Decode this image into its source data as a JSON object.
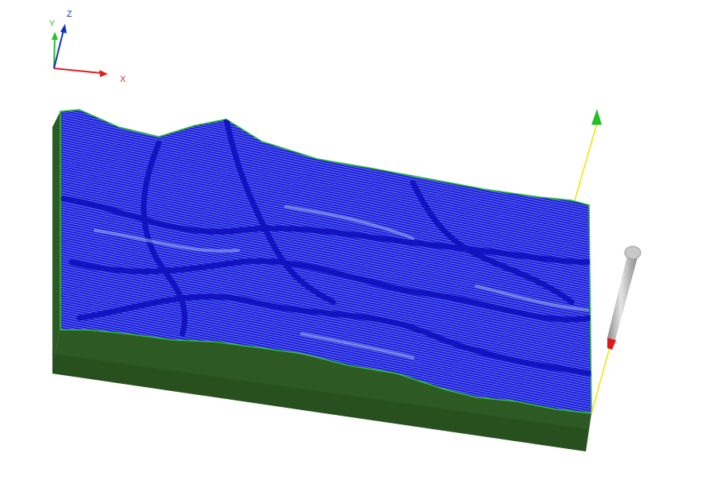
{
  "viewport": {
    "background": "#ffffff"
  },
  "orientation_triad": {
    "x_label": "X",
    "y_label": "Y",
    "z_label": "Z",
    "x_color": "#e02020",
    "y_color": "#22c022",
    "z_color": "#1030c0"
  },
  "terrain": {
    "surface_color": "#1a1adf",
    "toolpath_line_color": "#0a0ac8",
    "highlight_color": "#9fb8e8",
    "edge_color": "#30c030",
    "side_wall_color": "#2c5a22",
    "side_wall_dark": "#244a1c"
  },
  "work_axes": {
    "line_color": "#e8e800",
    "arrow_color": "#22c022"
  },
  "tool": {
    "shank_color": "#b8b8b8",
    "tip_color": "#e01818",
    "tip_label_icon": "cutting-tool-icon"
  }
}
